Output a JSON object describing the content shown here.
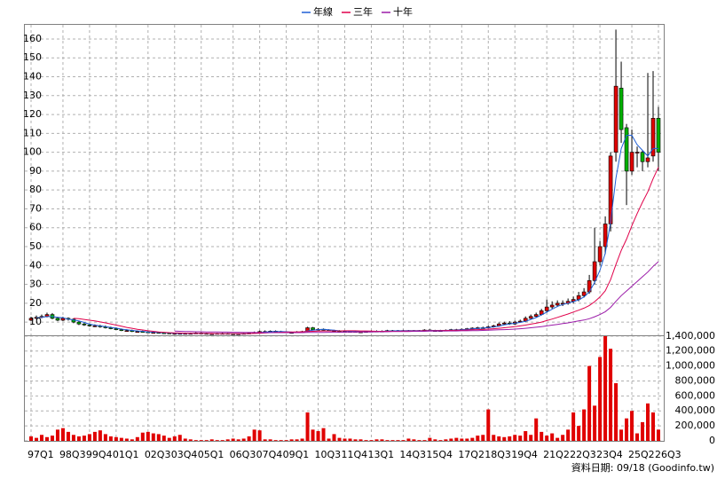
{
  "chart_data": {
    "type": "candlestick",
    "categories": [
      "97Q1",
      null,
      null,
      null,
      null,
      null,
      "98Q3",
      null,
      null,
      null,
      null,
      "99Q4",
      null,
      null,
      null,
      null,
      "01Q1",
      null,
      null,
      null,
      null,
      null,
      "02Q3",
      null,
      null,
      null,
      null,
      "03Q4",
      null,
      null,
      null,
      null,
      "05Q1",
      null,
      null,
      null,
      null,
      null,
      "06Q3",
      null,
      null,
      null,
      null,
      "07Q4",
      null,
      null,
      null,
      null,
      "09Q1",
      null,
      null,
      null,
      null,
      null,
      "10Q3",
      null,
      null,
      null,
      null,
      "11Q4",
      null,
      null,
      null,
      null,
      "13Q1",
      null,
      null,
      null,
      null,
      null,
      "14Q3",
      null,
      null,
      null,
      null,
      "15Q4",
      null,
      null,
      null,
      null,
      null,
      "17Q2",
      null,
      null,
      null,
      null,
      "18Q3",
      null,
      null,
      null,
      null,
      "19Q4",
      null,
      null,
      null,
      null,
      null,
      "21Q2",
      null,
      null,
      null,
      null,
      "22Q3",
      null,
      null,
      null,
      null,
      "23Q4",
      null,
      null,
      null,
      null,
      null,
      "25Q2",
      null,
      null,
      null,
      null,
      "26Q3"
    ],
    "open": [
      11,
      12,
      12.5,
      13,
      14,
      12,
      11,
      12,
      11.5,
      10,
      9,
      8.5,
      8,
      8,
      7.5,
      7,
      6.5,
      6,
      5.5,
      5.5,
      5,
      5,
      4.8,
      4.5,
      4.5,
      4.3,
      4.2,
      4,
      4,
      4,
      4,
      4,
      4.2,
      4,
      3.8,
      3.8,
      4,
      4,
      3.8,
      3.7,
      3.8,
      4,
      4.2,
      4.5,
      5,
      5,
      5.2,
      5,
      4.8,
      4.5,
      4.5,
      4.8,
      5,
      7,
      6,
      6.2,
      5.8,
      5.5,
      5.3,
      5,
      5,
      5,
      4.8,
      4.8,
      5,
      5.2,
      5,
      5.2,
      5.5,
      5.3,
      5.5,
      5.5,
      5.3,
      5.5,
      5.5,
      5.8,
      5.5,
      5.5,
      5.5,
      5.7,
      6,
      6,
      6.2,
      6.5,
      6.8,
      7,
      7,
      7.5,
      8,
      9,
      9.5,
      9,
      10,
      10.5,
      12,
      13,
      14,
      16,
      18,
      19,
      20,
      20,
      21,
      22,
      24,
      26,
      32,
      42,
      50,
      62,
      100,
      134,
      113,
      90,
      100,
      100,
      95,
      98,
      118
    ],
    "high": [
      12.8,
      13.5,
      14,
      15,
      14.8,
      12.8,
      12.8,
      12.5,
      12,
      10.5,
      9.8,
      9.2,
      8.8,
      8.6,
      8.2,
      7.6,
      7.2,
      6.6,
      6.2,
      6,
      5.6,
      5.5,
      5.2,
      5,
      4.9,
      4.8,
      4.6,
      4.4,
      4.4,
      4.4,
      4.4,
      4.6,
      4.6,
      4.3,
      4.2,
      4.3,
      4.4,
      4.3,
      4.1,
      4.1,
      4.3,
      4.6,
      5,
      5.5,
      5.6,
      5.6,
      5.6,
      5.4,
      5.2,
      4.9,
      5.2,
      5.4,
      7.5,
      7.4,
      6.8,
      6.6,
      6.2,
      5.9,
      5.7,
      5.4,
      5.4,
      5.3,
      5.2,
      5.3,
      5.6,
      5.6,
      5.6,
      5.9,
      5.8,
      5.8,
      5.9,
      5.8,
      5.8,
      5.8,
      6.2,
      6.2,
      5.9,
      5.9,
      6.1,
      6.4,
      6.4,
      6.6,
      6.9,
      7.2,
      7.5,
      7.6,
      8.1,
      8.6,
      9.8,
      10.2,
      10.5,
      10.8,
      11.3,
      13,
      14,
      15,
      17,
      22,
      21,
      21.5,
      21.5,
      22.5,
      23.5,
      26,
      28,
      35,
      60,
      53,
      66,
      100,
      165,
      148,
      115,
      112,
      103,
      101,
      142,
      143,
      124
    ],
    "low": [
      10.5,
      11.5,
      12,
      12.5,
      11.5,
      10.5,
      10.5,
      10.8,
      9.4,
      8.4,
      8,
      7.5,
      7.4,
      7,
      6.6,
      6.2,
      5.8,
      5.2,
      5,
      4.7,
      4.6,
      4.5,
      4.2,
      4.2,
      4,
      3.9,
      3.8,
      3.7,
      3.7,
      3.7,
      3.7,
      3.8,
      3.7,
      3.5,
      3.5,
      3.5,
      3.7,
      3.5,
      3.4,
      3.4,
      3.5,
      3.8,
      4,
      4.3,
      4.6,
      4.7,
      4.7,
      4.5,
      4.3,
      4.2,
      4.2,
      4.5,
      4.8,
      5.8,
      5.8,
      5.5,
      5.2,
      5,
      4.7,
      4.7,
      4.7,
      4.5,
      4.5,
      4.6,
      4.8,
      4.8,
      4.8,
      5,
      5,
      5,
      5.2,
      5,
      5,
      5.2,
      5.3,
      5.2,
      5.2,
      5.2,
      5.3,
      5.5,
      5.7,
      5.8,
      5.9,
      6.2,
      6.5,
      6.6,
      6.7,
      7.1,
      7.6,
      8.5,
      8.5,
      8.6,
      9.6,
      10,
      11.5,
      12.5,
      13.5,
      15,
      17,
      18,
      18.5,
      19.2,
      20,
      21,
      23,
      25,
      30,
      40,
      46,
      58,
      95,
      105,
      72,
      88,
      92,
      90,
      92,
      95,
      90
    ],
    "close": [
      12,
      12.5,
      13,
      14,
      12,
      11,
      12,
      11.5,
      10,
      9,
      8.5,
      8,
      8,
      7.5,
      7,
      6.5,
      6,
      5.5,
      5.5,
      5,
      5,
      4.8,
      4.5,
      4.5,
      4.3,
      4.2,
      4,
      4,
      4,
      4,
      4,
      4.2,
      4,
      3.8,
      3.8,
      4,
      4,
      3.8,
      3.7,
      3.8,
      4,
      4.2,
      4.5,
      5,
      5,
      5.2,
      5,
      4.8,
      4.5,
      4.5,
      4.8,
      5,
      7,
      6,
      6.2,
      5.8,
      5.5,
      5.3,
      5,
      5,
      5,
      4.8,
      4.8,
      5,
      5.2,
      5,
      5.2,
      5.5,
      5.3,
      5.5,
      5.5,
      5.3,
      5.5,
      5.5,
      5.8,
      5.5,
      5.5,
      5.5,
      5.7,
      6,
      6,
      6.2,
      6.5,
      6.8,
      7,
      7,
      7.5,
      8,
      9,
      9.5,
      9,
      10,
      10.5,
      12,
      13,
      14,
      16,
      18,
      19,
      20,
      20,
      21,
      22,
      24,
      26,
      32,
      42,
      50,
      62,
      98,
      135,
      112,
      90,
      100,
      100,
      95,
      97,
      118,
      100
    ],
    "up_color": "#e00000",
    "down_color": "#00b000",
    "ylim": [
      3,
      167.5
    ],
    "yticks": [
      10,
      20,
      30,
      40,
      50,
      60,
      70,
      80,
      90,
      100,
      110,
      120,
      130,
      140,
      150,
      160
    ],
    "grid": true,
    "series": [
      {
        "name": "年線",
        "color": "#1f5fd6",
        "values": [
          null,
          12.2,
          12.5,
          12.9,
          12.9,
          12.5,
          12.3,
          11.6,
          11.1,
          10.6,
          9.8,
          8.9,
          8.4,
          8,
          7.6,
          7.2,
          6.8,
          6.3,
          5.9,
          5.6,
          5.3,
          5.1,
          4.8,
          4.7,
          4.5,
          4.4,
          4.3,
          4.1,
          4,
          4,
          4,
          4,
          4,
          4,
          3.9,
          3.9,
          3.9,
          3.9,
          3.9,
          3.8,
          3.8,
          3.9,
          4.1,
          4.4,
          4.7,
          4.9,
          5,
          5,
          4.9,
          4.7,
          4.6,
          4.7,
          5.3,
          5.7,
          6,
          6.2,
          5.9,
          5.7,
          5.4,
          5.2,
          5.1,
          5,
          4.9,
          4.9,
          5,
          5,
          5.1,
          5.2,
          5.3,
          5.4,
          5.4,
          5.5,
          5.5,
          5.5,
          5.5,
          5.6,
          5.6,
          5.6,
          5.6,
          5.7,
          5.8,
          6,
          6.2,
          6.4,
          6.6,
          6.8,
          7.1,
          7.4,
          7.9,
          8.5,
          9,
          9.4,
          9.8,
          10.4,
          11.4,
          12.4,
          13.8,
          15.3,
          16.8,
          18.3,
          19.3,
          20,
          20.8,
          21.8,
          23.3,
          26,
          31,
          37.5,
          46.5,
          63,
          86.3,
          102,
          109,
          109,
          104,
          101,
          98,
          102,
          102
        ]
      },
      {
        "name": "三年",
        "color": "#e0004a",
        "values": [
          null,
          null,
          null,
          null,
          null,
          null,
          null,
          null,
          12,
          11.8,
          11.4,
          11,
          10.6,
          10.1,
          9.6,
          9,
          8.4,
          7.8,
          7.2,
          6.7,
          6.2,
          5.8,
          5.4,
          5.1,
          4.8,
          4.6,
          4.4,
          4.3,
          4.2,
          4.1,
          4.1,
          4,
          4,
          4,
          4,
          3.9,
          3.9,
          3.9,
          3.9,
          3.9,
          3.9,
          3.9,
          4,
          4.1,
          4.2,
          4.4,
          4.5,
          4.6,
          4.7,
          4.8,
          4.8,
          4.9,
          5,
          5.1,
          5.2,
          5.3,
          5.3,
          5.3,
          5.3,
          5.4,
          5.4,
          5.4,
          5.3,
          5.3,
          5.2,
          5.1,
          5.1,
          5.1,
          5.1,
          5.1,
          5.2,
          5.2,
          5.3,
          5.3,
          5.4,
          5.4,
          5.5,
          5.5,
          5.6,
          5.6,
          5.7,
          5.7,
          5.8,
          5.9,
          6,
          6.1,
          6.3,
          6.5,
          6.7,
          7,
          7.3,
          7.6,
          8,
          8.4,
          8.9,
          9.4,
          10,
          10.8,
          11.6,
          12.5,
          13.4,
          14.3,
          15.3,
          16.3,
          17.4,
          18.8,
          20.8,
          23.3,
          26.6,
          32.5,
          40.5,
          48,
          54,
          61,
          67.5,
          73.5,
          79,
          86,
          92
        ]
      },
      {
        "name": "十年",
        "color": "#9a1aa8",
        "values": [
          null,
          null,
          null,
          null,
          null,
          null,
          null,
          null,
          null,
          null,
          null,
          null,
          null,
          null,
          null,
          null,
          null,
          null,
          null,
          null,
          null,
          null,
          null,
          null,
          null,
          null,
          null,
          5.2,
          5.1,
          5,
          5,
          4.9,
          4.9,
          4.8,
          4.8,
          4.8,
          4.7,
          4.7,
          4.6,
          4.6,
          4.5,
          4.5,
          4.5,
          4.4,
          4.4,
          4.4,
          4.4,
          4.4,
          4.4,
          4.4,
          4.4,
          4.4,
          4.5,
          4.5,
          4.5,
          4.5,
          4.6,
          4.6,
          4.6,
          4.7,
          4.7,
          4.7,
          4.8,
          4.8,
          4.8,
          4.9,
          4.9,
          4.9,
          5,
          5,
          5,
          5,
          5.1,
          5.1,
          5.1,
          5.2,
          5.2,
          5.2,
          5.3,
          5.3,
          5.3,
          5.4,
          5.4,
          5.5,
          5.5,
          5.6,
          5.7,
          5.8,
          5.9,
          6,
          6.1,
          6.3,
          6.5,
          6.7,
          7,
          7.3,
          7.6,
          8,
          8.4,
          8.8,
          9.2,
          9.6,
          10.1,
          10.6,
          11.1,
          11.8,
          12.8,
          14,
          15.5,
          17.8,
          21,
          24,
          26.5,
          29,
          31.5,
          34,
          36.5,
          39.5,
          42
        ]
      }
    ],
    "volume": {
      "color": "#e00000",
      "values": [
        60000,
        40000,
        80000,
        50000,
        70000,
        150000,
        170000,
        120000,
        80000,
        60000,
        70000,
        90000,
        120000,
        140000,
        90000,
        60000,
        50000,
        40000,
        30000,
        20000,
        50000,
        110000,
        120000,
        100000,
        90000,
        70000,
        40000,
        60000,
        80000,
        30000,
        20000,
        10000,
        10000,
        10000,
        20000,
        10000,
        10000,
        20000,
        30000,
        20000,
        30000,
        60000,
        150000,
        140000,
        20000,
        20000,
        10000,
        10000,
        10000,
        20000,
        20000,
        30000,
        380000,
        150000,
        130000,
        170000,
        30000,
        90000,
        40000,
        30000,
        30000,
        20000,
        20000,
        10000,
        10000,
        20000,
        20000,
        10000,
        10000,
        10000,
        10000,
        30000,
        20000,
        10000,
        10000,
        40000,
        20000,
        10000,
        20000,
        30000,
        40000,
        30000,
        30000,
        40000,
        70000,
        80000,
        420000,
        80000,
        60000,
        50000,
        60000,
        80000,
        70000,
        130000,
        80000,
        300000,
        120000,
        70000,
        100000,
        40000,
        80000,
        150000,
        380000,
        200000,
        420000,
        1000000,
        470000,
        1120000,
        1400000,
        1230000,
        770000,
        150000,
        300000,
        400000,
        100000,
        250000,
        500000,
        380000,
        150000
      ],
      "ylim": [
        0,
        1410000
      ],
      "yticks": [
        0,
        {
          "value": 200000,
          "label": "200,000"
        },
        {
          "value": 400000,
          "label": "400,000"
        },
        {
          "value": 600000,
          "label": "600,000"
        },
        {
          "value": 800000,
          "label": "800,000"
        },
        {
          "value": 1000000,
          "label": "1,000,000"
        },
        {
          "value": 1200000,
          "label": "1,200,000"
        },
        {
          "value": 1400000,
          "label": "1,400,000"
        }
      ]
    },
    "footnote": "資料日期: 09/18 (Goodinfo.tw)"
  }
}
